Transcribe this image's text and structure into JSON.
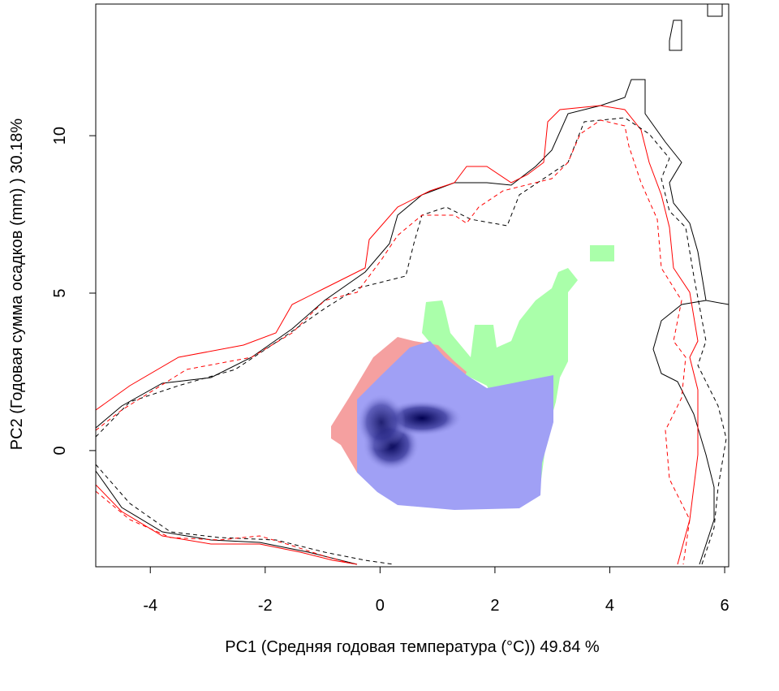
{
  "chart_data": {
    "type": "contour",
    "xlabel": "PC1 (Средняя годовая температура (°C)) 49.84 %",
    "ylabel": "PC2 (Годовая сумма осадков  (mm) ) 30.18%",
    "xlim": [
      -4.95,
      6.07
    ],
    "ylim": [
      -3.69,
      14.18
    ],
    "xticks": [
      -4,
      -2,
      0,
      2,
      4,
      6
    ],
    "yticks": [
      0,
      5,
      10
    ]
  }
}
